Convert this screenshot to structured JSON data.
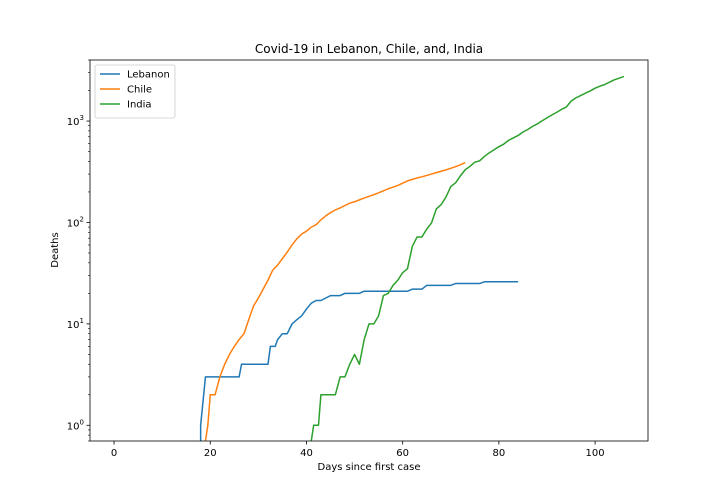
{
  "chart_data": {
    "type": "line",
    "title": "Covid-19 in Lebanon, Chile, and, India",
    "xlabel": "Days since first case",
    "ylabel": "Deaths",
    "xlim": [
      -5,
      111
    ],
    "ylim": [
      0.7,
      4000
    ],
    "yscale": "log",
    "xticks": [
      0,
      20,
      40,
      60,
      80,
      100
    ],
    "yticks": [
      {
        "value": 1,
        "base": "10",
        "exp": "0"
      },
      {
        "value": 10,
        "base": "10",
        "exp": "1"
      },
      {
        "value": 100,
        "base": "10",
        "exp": "2"
      },
      {
        "value": 1000,
        "base": "10",
        "exp": "3"
      }
    ],
    "grid": false,
    "legend": "top-left",
    "series": [
      {
        "name": "Lebanon",
        "color": "#1f77b4",
        "x": [
          18,
          18,
          19,
          26,
          26.5,
          32,
          32.5,
          33.5,
          34,
          35,
          36,
          37,
          38,
          39,
          40,
          41,
          42,
          43,
          45,
          47,
          48,
          51,
          52,
          56,
          57,
          61,
          62,
          64,
          65,
          70,
          71,
          76,
          77,
          84
        ],
        "y": [
          0.7,
          1,
          3,
          3,
          4,
          4,
          6,
          6,
          7,
          8,
          8,
          10,
          11,
          12,
          14,
          16,
          17,
          17,
          19,
          19,
          20,
          20,
          21,
          21,
          21,
          21,
          22,
          22,
          24,
          24,
          25,
          25,
          26,
          26
        ]
      },
      {
        "name": "Chile",
        "color": "#ff7f0e",
        "x": [
          19,
          19.5,
          20,
          21,
          22,
          23,
          24,
          25,
          26,
          27,
          28,
          29,
          30,
          31,
          32,
          33,
          34,
          35,
          36,
          37,
          38,
          39,
          40,
          41,
          42,
          43,
          44,
          45,
          46,
          47,
          48,
          49,
          50,
          51,
          52,
          53,
          54,
          55,
          56,
          57,
          58,
          59,
          60,
          61,
          62,
          63,
          64,
          65,
          66,
          67,
          68,
          69,
          70,
          71,
          72,
          73
        ],
        "y": [
          0.7,
          1,
          2,
          2,
          3,
          4,
          5,
          6,
          7,
          8,
          11,
          15,
          18,
          22,
          27,
          34,
          38,
          44,
          51,
          60,
          69,
          77,
          82,
          90,
          95,
          106,
          116,
          125,
          133,
          139,
          147,
          155,
          160,
          167,
          174,
          181,
          188,
          196,
          205,
          215,
          223,
          232,
          244,
          257,
          266,
          275,
          282,
          291,
          300,
          310,
          320,
          330,
          342,
          355,
          370,
          390
        ]
      },
      {
        "name": "India",
        "color": "#2ca02c",
        "x": [
          41,
          41.5,
          42.5,
          43,
          44,
          46,
          47,
          48,
          49,
          50,
          51,
          52,
          53,
          54,
          55,
          56,
          57,
          58,
          59,
          60,
          61,
          62,
          63,
          64,
          65,
          66,
          67,
          68,
          69,
          70,
          71,
          72,
          73,
          74,
          75,
          76,
          77,
          78,
          79,
          80,
          81,
          82,
          83,
          84,
          85,
          86,
          87,
          88,
          89,
          90,
          91,
          92,
          93,
          94,
          95,
          96,
          97,
          98,
          99,
          100,
          101,
          102,
          103,
          104,
          105,
          106
        ],
        "y": [
          0.7,
          1,
          1,
          2,
          2,
          2,
          3,
          3,
          4,
          5,
          4,
          7,
          10,
          10,
          12,
          19,
          20,
          24,
          27,
          32,
          35,
          58,
          72,
          72,
          86,
          99,
          136,
          150,
          178,
          226,
          246,
          288,
          331,
          358,
          393,
          405,
          448,
          486,
          521,
          559,
          592,
          645,
          681,
          721,
          780,
          826,
          886,
          937,
          1007,
          1074,
          1147,
          1218,
          1301,
          1373,
          1568,
          1693,
          1783,
          1886,
          1981,
          2109,
          2206,
          2293,
          2415,
          2549,
          2649,
          2752
        ]
      }
    ]
  }
}
